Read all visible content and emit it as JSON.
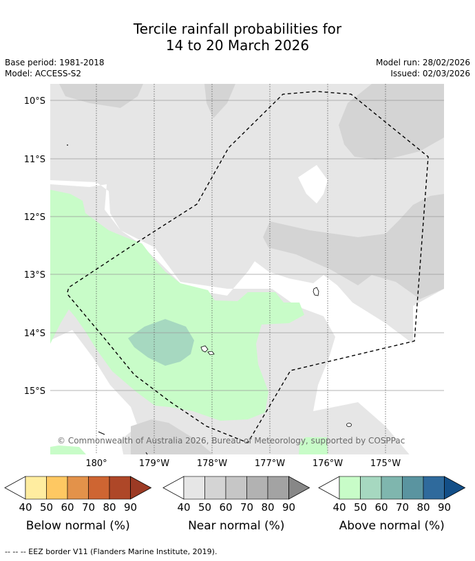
{
  "title": {
    "line1": "Tercile rainfall probabilities for",
    "line2": "14 to 20 March 2026"
  },
  "meta": {
    "base_period": "Base period: 1981-2018",
    "model": "Model: ACCESS-S2",
    "model_run": "Model run: 28/02/2026",
    "issued": "Issued: 02/03/2026"
  },
  "map": {
    "lat_labels": [
      "10°S",
      "11°S",
      "12°S",
      "13°S",
      "14°S",
      "15°S"
    ],
    "lon_labels": [
      "180°",
      "179°W",
      "178°W",
      "177°W",
      "176°W",
      "175°W"
    ],
    "copyright": "© Commonwealth of Australia 2026, Bureau of Meteorology, supported by COSPPac",
    "colors": {
      "near40": "#e6e6e6",
      "near50": "#d4d4d4",
      "above40": "#c8fcc8",
      "above50": "#a6d8c0",
      "grid": "#9a9a9a"
    }
  },
  "colorbars": [
    {
      "label": "Below normal (%)",
      "ticks": [
        "40",
        "50",
        "60",
        "70",
        "80",
        "90"
      ],
      "colors": [
        "#ffffff",
        "#ffeda0",
        "#fec862",
        "#e3924a",
        "#ce6532",
        "#ae4728",
        "#9c3a24"
      ]
    },
    {
      "label": "Near normal (%)",
      "ticks": [
        "40",
        "50",
        "60",
        "70",
        "80",
        "90"
      ],
      "colors": [
        "#ffffff",
        "#e6e6e6",
        "#d4d4d4",
        "#c6c6c6",
        "#b2b2b2",
        "#a3a3a3",
        "#878787"
      ]
    },
    {
      "label": "Above normal (%)",
      "ticks": [
        "40",
        "50",
        "60",
        "70",
        "80",
        "90"
      ],
      "colors": [
        "#ffffff",
        "#c8fcc8",
        "#a6d8c0",
        "#7fb6ae",
        "#5a94a0",
        "#2f6a9c",
        "#134f88"
      ]
    }
  ],
  "footer": {
    "eez": "--  --  -- EEZ border V11 (Flanders Marine Institute, 2019)."
  }
}
